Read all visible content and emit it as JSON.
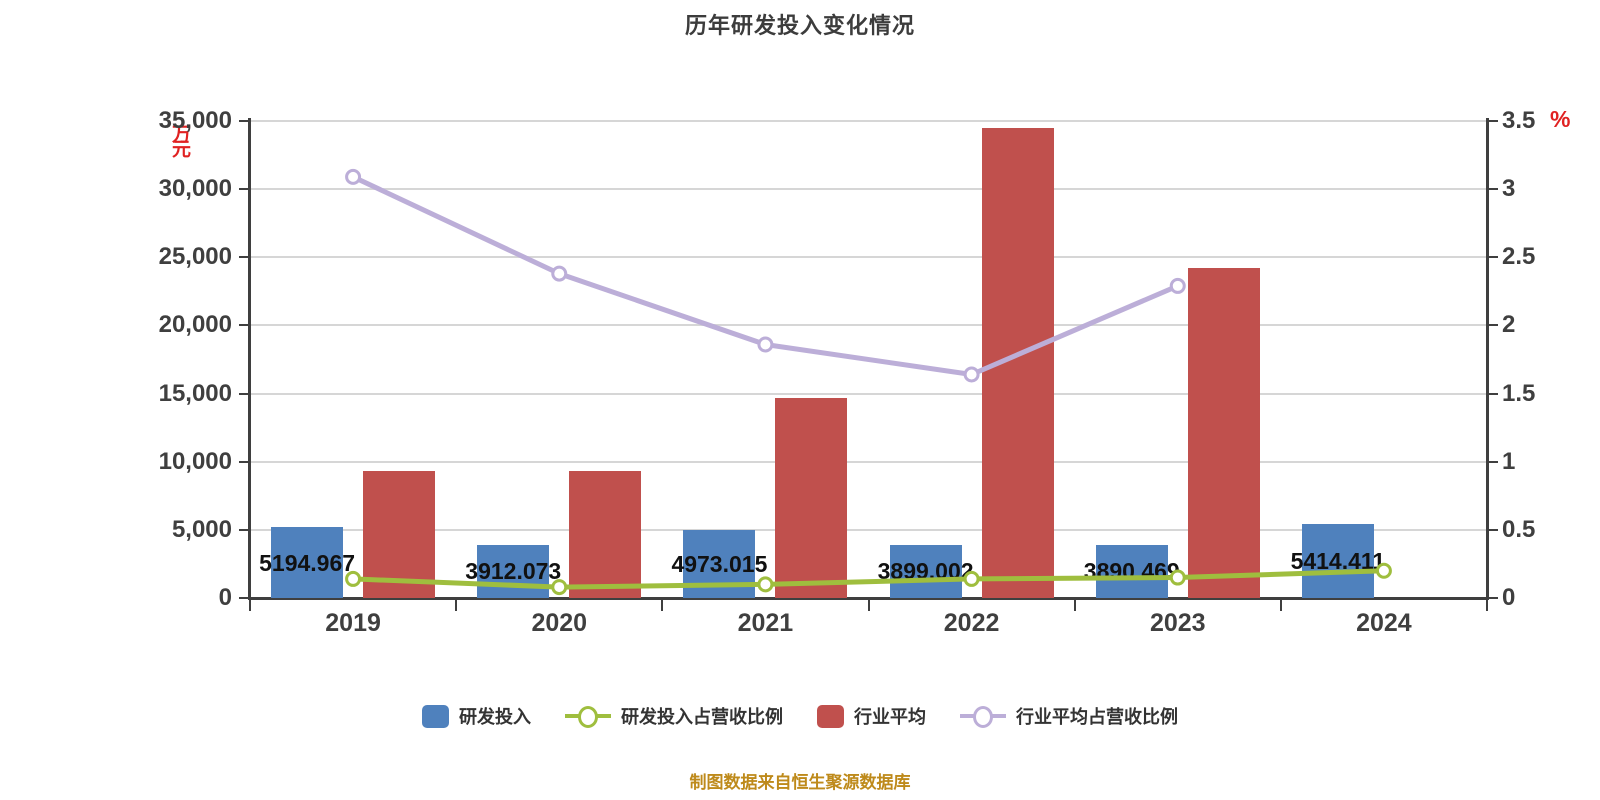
{
  "title": "历年研发投入变化情况",
  "caption": "制图数据来自恒生聚源数据库",
  "axes": {
    "left": {
      "unit": "万元",
      "tick_labels": [
        "0",
        "5,000",
        "10,000",
        "15,000",
        "20,000",
        "25,000",
        "30,000",
        "35,000"
      ]
    },
    "right": {
      "unit": "%",
      "tick_labels": [
        "0",
        "0.5",
        "1",
        "1.5",
        "2",
        "2.5",
        "3",
        "3.5"
      ]
    },
    "x": {
      "tick_labels": [
        "2019",
        "2020",
        "2021",
        "2022",
        "2023",
        "2024"
      ]
    }
  },
  "chart_data": {
    "type": "bar",
    "subtype": "bar-line-combo-dual-axis",
    "title": "历年研发投入变化情况",
    "categories": [
      "2019",
      "2020",
      "2021",
      "2022",
      "2023",
      "2024"
    ],
    "series": [
      {
        "name": "研发投入",
        "type": "bar",
        "axis": "left",
        "color": "#4F81BD",
        "values": [
          5194.967,
          3912.073,
          4973.015,
          3899.002,
          3890.469,
          5414.411
        ],
        "labels": [
          "5194.967",
          "3912.073",
          "4973.015",
          "3899.002",
          "3890.469",
          "5414.411"
        ]
      },
      {
        "name": "研发投入占营收比例",
        "type": "line",
        "axis": "right",
        "color": "#9FBE3E",
        "marker_fill": "#ffffff",
        "values": [
          0.14,
          0.08,
          0.1,
          0.14,
          0.15,
          0.2
        ]
      },
      {
        "name": "行业平均",
        "type": "bar",
        "axis": "left",
        "color": "#C0504D",
        "values": [
          9350,
          9300,
          14700,
          34500,
          24250,
          null
        ]
      },
      {
        "name": "行业平均占营收比例",
        "type": "line",
        "axis": "right",
        "color": "#BCAED8",
        "marker_fill": "#ffffff",
        "values": [
          3.09,
          2.38,
          1.86,
          1.64,
          2.29,
          null
        ]
      }
    ],
    "xlabel": "",
    "ylabel_left": "万元",
    "ylabel_right": "%",
    "ylim_left": [
      0,
      35000
    ],
    "ylim_right": [
      0,
      3.5
    ],
    "ytick_step_left": 5000,
    "ytick_step_right": 0.5,
    "grid": true,
    "legend_position": "bottom"
  },
  "legend": {
    "items": [
      {
        "label": "研发投入",
        "marker": "square",
        "color": "#4F81BD"
      },
      {
        "label": "研发投入占营收比例",
        "marker": "line-dot",
        "color": "#9FBE3E"
      },
      {
        "label": "行业平均",
        "marker": "square",
        "color": "#C0504D"
      },
      {
        "label": "行业平均占营收比例",
        "marker": "line-dot",
        "color": "#BCAED8"
      }
    ]
  },
  "colors": {
    "background": "#ffffff",
    "grid": "#d6d6d6",
    "axis": "#3f3f3f",
    "tick_label": "#3f3f3f",
    "title": "#3c3c3c",
    "unit_label": "#e02222",
    "caption": "#be8a1b",
    "value_label": "#111111"
  }
}
